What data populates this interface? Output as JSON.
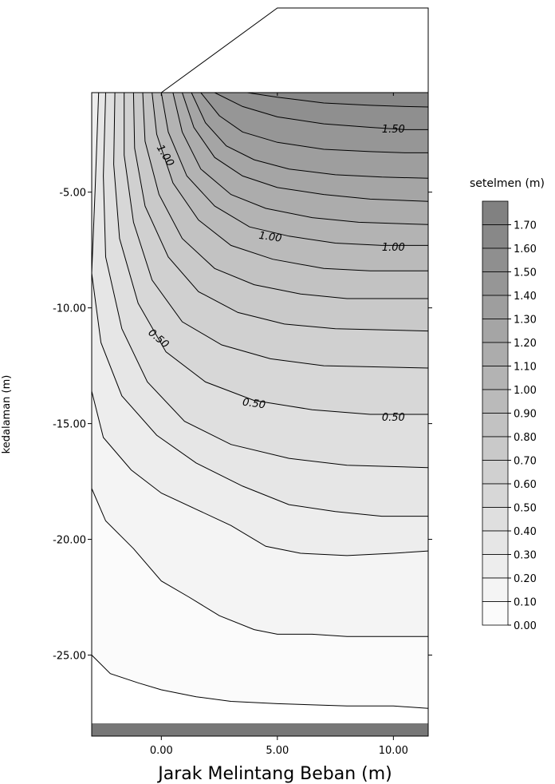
{
  "chart_data": {
    "type": "contour",
    "title": "",
    "xlabel": "Jarak Melintang Beban (m)",
    "ylabel": "kedalaman (m)",
    "xlim": [
      -3,
      11.5
    ],
    "ylim": [
      -28.5,
      -0.7
    ],
    "x_ticks": [
      0,
      5,
      10
    ],
    "x_tick_labels": [
      "0.00",
      "5.00",
      "10.00"
    ],
    "y_ticks": [
      -5,
      -10,
      -15,
      -20,
      -25
    ],
    "y_tick_labels": [
      "-5.00",
      "-10.00",
      "-15.00",
      "-20.00",
      "-25.00"
    ],
    "embankment_profile": [
      {
        "x": 0,
        "y": 0
      },
      {
        "x": 5,
        "y": 3.6
      },
      {
        "x": 11.5,
        "y": 3.6
      },
      {
        "x": 11.5,
        "y": 0
      }
    ],
    "contour_lines": [
      {
        "level": 1.6,
        "points": [
          [
            3.7,
            -0.7
          ],
          [
            5,
            -0.9
          ],
          [
            7,
            -1.15
          ],
          [
            9,
            -1.25
          ],
          [
            10.5,
            -1.3
          ],
          [
            11.5,
            -1.32
          ]
        ]
      },
      {
        "level": 1.5,
        "points": [
          [
            2.3,
            -0.7
          ],
          [
            3.5,
            -1.3
          ],
          [
            5,
            -1.75
          ],
          [
            7,
            -2.05
          ],
          [
            9,
            -2.2
          ],
          [
            10.5,
            -2.3
          ],
          [
            11.5,
            -2.3
          ]
        ]
      },
      {
        "level": 1.4,
        "points": [
          [
            1.7,
            -0.7
          ],
          [
            2.5,
            -1.7
          ],
          [
            3.5,
            -2.4
          ],
          [
            5,
            -2.85
          ],
          [
            7,
            -3.15
          ],
          [
            9,
            -3.25
          ],
          [
            10.5,
            -3.3
          ],
          [
            11.5,
            -3.3
          ]
        ]
      },
      {
        "level": 1.3,
        "points": [
          [
            1.3,
            -0.7
          ],
          [
            1.9,
            -2.0
          ],
          [
            2.8,
            -3.0
          ],
          [
            4,
            -3.6
          ],
          [
            5.5,
            -4.0
          ],
          [
            7.5,
            -4.25
          ],
          [
            9.5,
            -4.35
          ],
          [
            11.5,
            -4.4
          ]
        ]
      },
      {
        "level": 1.2,
        "points": [
          [
            0.9,
            -0.7
          ],
          [
            1.4,
            -2.2
          ],
          [
            2.3,
            -3.5
          ],
          [
            3.5,
            -4.3
          ],
          [
            5,
            -4.8
          ],
          [
            7,
            -5.1
          ],
          [
            9,
            -5.3
          ],
          [
            11.5,
            -5.4
          ]
        ]
      },
      {
        "level": 1.1,
        "points": [
          [
            0.5,
            -0.7
          ],
          [
            0.9,
            -2.4
          ],
          [
            1.7,
            -4.0
          ],
          [
            3,
            -5.1
          ],
          [
            4.5,
            -5.7
          ],
          [
            6.5,
            -6.1
          ],
          [
            8.5,
            -6.3
          ],
          [
            11.5,
            -6.4
          ]
        ]
      },
      {
        "level": 1.0,
        "points": [
          [
            0.0,
            -0.7
          ],
          [
            0.3,
            -2.4
          ],
          [
            1.1,
            -4.3
          ],
          [
            2.3,
            -5.6
          ],
          [
            3.8,
            -6.5
          ],
          [
            5.5,
            -6.9
          ],
          [
            7.5,
            -7.2
          ],
          [
            9.5,
            -7.3
          ],
          [
            11.5,
            -7.3
          ]
        ]
      },
      {
        "level": 0.9,
        "points": [
          [
            -0.4,
            -0.7
          ],
          [
            -0.2,
            -2.5
          ],
          [
            0.5,
            -4.6
          ],
          [
            1.6,
            -6.2
          ],
          [
            3,
            -7.3
          ],
          [
            4.8,
            -7.9
          ],
          [
            7,
            -8.3
          ],
          [
            9,
            -8.4
          ],
          [
            11.5,
            -8.4
          ]
        ]
      },
      {
        "level": 0.8,
        "points": [
          [
            -0.8,
            -0.7
          ],
          [
            -0.7,
            -2.8
          ],
          [
            -0.1,
            -5.1
          ],
          [
            0.9,
            -7.0
          ],
          [
            2.3,
            -8.3
          ],
          [
            4,
            -9.0
          ],
          [
            6,
            -9.4
          ],
          [
            8,
            -9.6
          ],
          [
            11.5,
            -9.6
          ]
        ]
      },
      {
        "level": 0.7,
        "points": [
          [
            -1.2,
            -0.7
          ],
          [
            -1.15,
            -3.1
          ],
          [
            -0.7,
            -5.6
          ],
          [
            0.3,
            -7.8
          ],
          [
            1.6,
            -9.3
          ],
          [
            3.3,
            -10.2
          ],
          [
            5.3,
            -10.7
          ],
          [
            7.5,
            -10.9
          ],
          [
            11.5,
            -11.0
          ]
        ]
      },
      {
        "level": 0.6,
        "points": [
          [
            -1.6,
            -0.7
          ],
          [
            -1.6,
            -3.4
          ],
          [
            -1.2,
            -6.3
          ],
          [
            -0.4,
            -8.8
          ],
          [
            0.9,
            -10.6
          ],
          [
            2.6,
            -11.6
          ],
          [
            4.7,
            -12.2
          ],
          [
            7,
            -12.5
          ],
          [
            11.5,
            -12.6
          ]
        ]
      },
      {
        "level": 0.5,
        "points": [
          [
            -2.0,
            -0.7
          ],
          [
            -2.05,
            -3.8
          ],
          [
            -1.8,
            -7.0
          ],
          [
            -1.0,
            -9.8
          ],
          [
            0.2,
            -11.9
          ],
          [
            1.9,
            -13.2
          ],
          [
            4,
            -14.0
          ],
          [
            6.5,
            -14.4
          ],
          [
            9,
            -14.6
          ],
          [
            11.5,
            -14.6
          ]
        ]
      },
      {
        "level": 0.4,
        "points": [
          [
            -2.4,
            -0.7
          ],
          [
            -2.5,
            -4.3
          ],
          [
            -2.4,
            -7.8
          ],
          [
            -1.7,
            -10.9
          ],
          [
            -0.6,
            -13.2
          ],
          [
            1,
            -14.9
          ],
          [
            3,
            -15.9
          ],
          [
            5.5,
            -16.5
          ],
          [
            8,
            -16.8
          ],
          [
            11.5,
            -16.9
          ]
        ]
      },
      {
        "level": 0.3,
        "points": [
          [
            -2.7,
            -0.7
          ],
          [
            -2.85,
            -4.8
          ],
          [
            -3.0,
            -8.5
          ],
          [
            -2.6,
            -11.5
          ],
          [
            -1.7,
            -13.8
          ],
          [
            -0.2,
            -15.5
          ],
          [
            1.5,
            -16.7
          ],
          [
            3.5,
            -17.7
          ],
          [
            5.5,
            -18.5
          ],
          [
            7.5,
            -18.8
          ],
          [
            9.5,
            -19.0
          ],
          [
            11.5,
            -19.0
          ]
        ]
      },
      {
        "level": 0.2,
        "points": [
          [
            -3.0,
            -13.6
          ],
          [
            -2.5,
            -15.6
          ],
          [
            -1.3,
            -17.0
          ],
          [
            0,
            -18.0
          ],
          [
            1.5,
            -18.7
          ],
          [
            3,
            -19.4
          ],
          [
            4.5,
            -20.3
          ],
          [
            6,
            -20.6
          ],
          [
            8,
            -20.7
          ],
          [
            10,
            -20.6
          ],
          [
            11.5,
            -20.5
          ]
        ]
      },
      {
        "level": 0.1,
        "points": [
          [
            -3.0,
            -17.8
          ],
          [
            -2.4,
            -19.2
          ],
          [
            -1.2,
            -20.4
          ],
          [
            0,
            -21.8
          ],
          [
            1.2,
            -22.5
          ],
          [
            2.5,
            -23.3
          ],
          [
            4,
            -23.9
          ],
          [
            5,
            -24.1
          ],
          [
            6.5,
            -24.1
          ],
          [
            8,
            -24.2
          ],
          [
            10,
            -24.2
          ],
          [
            11.5,
            -24.2
          ]
        ]
      },
      {
        "level": 0.0,
        "points": [
          [
            -3.0,
            -25.0
          ],
          [
            -2.2,
            -25.8
          ],
          [
            -1,
            -26.2
          ],
          [
            0,
            -26.5
          ],
          [
            1.5,
            -26.8
          ],
          [
            3,
            -27.0
          ],
          [
            5,
            -27.1
          ],
          [
            8,
            -27.2
          ],
          [
            10,
            -27.2
          ],
          [
            11.5,
            -27.3
          ]
        ]
      }
    ],
    "contour_labels": [
      {
        "text": "1.50",
        "x": 10.0,
        "y": -2.25,
        "angle": 0
      },
      {
        "text": "1.00",
        "x": 0.2,
        "y": -3.4,
        "angle": 58
      },
      {
        "text": "1.00",
        "x": 4.7,
        "y": -6.9,
        "angle": 8
      },
      {
        "text": "1.00",
        "x": 10.0,
        "y": -7.35,
        "angle": 0
      },
      {
        "text": "0.50",
        "x": -0.1,
        "y": -11.3,
        "angle": 40
      },
      {
        "text": "0.50",
        "x": 4.0,
        "y": -14.1,
        "angle": 8
      },
      {
        "text": "0.50",
        "x": 10.0,
        "y": -14.7,
        "angle": 0
      }
    ],
    "legend": {
      "title": "setelmen (m)",
      "levels": [
        "1.70",
        "1.60",
        "1.50",
        "1.40",
        "1.30",
        "1.20",
        "1.10",
        "1.00",
        "0.90",
        "0.80",
        "0.70",
        "0.60",
        "0.50",
        "0.40",
        "0.30",
        "0.20",
        "0.10",
        "0.00"
      ]
    }
  }
}
